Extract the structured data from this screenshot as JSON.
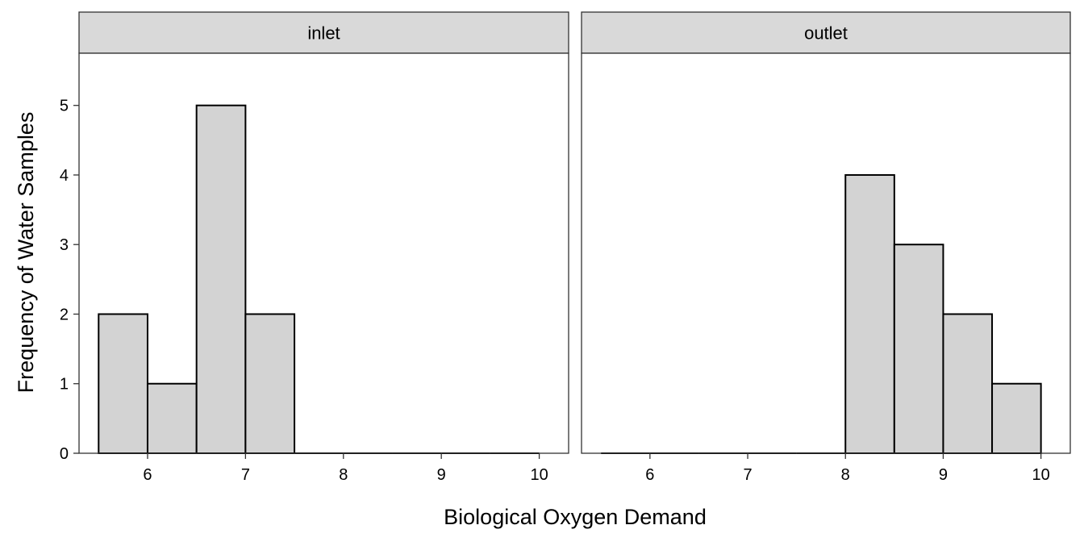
{
  "chart_data": {
    "type": "bar",
    "subtype": "histogram",
    "xlabel": "Biological Oxygen Demand",
    "ylabel": "Frequency of Water Samples",
    "xlim": [
      5.3,
      10.3
    ],
    "ylim": [
      0,
      5.75
    ],
    "x_ticks": [
      6,
      7,
      8,
      9,
      10
    ],
    "y_ticks": [
      0,
      1,
      2,
      3,
      4,
      5
    ],
    "bin_width": 0.5,
    "grid": false,
    "bar_fill": "#d3d3d3",
    "bar_stroke": "#000000",
    "strip_fill": "#d9d9d9",
    "panels": [
      {
        "label": "inlet",
        "bins": [
          {
            "x0": 5.5,
            "x1": 6.0,
            "count": 2
          },
          {
            "x0": 6.0,
            "x1": 6.5,
            "count": 1
          },
          {
            "x0": 6.5,
            "x1": 7.0,
            "count": 5
          },
          {
            "x0": 7.0,
            "x1": 7.5,
            "count": 2
          },
          {
            "x0": 7.5,
            "x1": 8.0,
            "count": 0
          },
          {
            "x0": 8.0,
            "x1": 8.5,
            "count": 0
          },
          {
            "x0": 8.5,
            "x1": 9.0,
            "count": 0
          },
          {
            "x0": 9.0,
            "x1": 9.5,
            "count": 0
          },
          {
            "x0": 9.5,
            "x1": 10.0,
            "count": 0
          }
        ]
      },
      {
        "label": "outlet",
        "bins": [
          {
            "x0": 5.5,
            "x1": 6.0,
            "count": 0
          },
          {
            "x0": 6.0,
            "x1": 6.5,
            "count": 0
          },
          {
            "x0": 6.5,
            "x1": 7.0,
            "count": 0
          },
          {
            "x0": 7.0,
            "x1": 7.5,
            "count": 0
          },
          {
            "x0": 7.5,
            "x1": 8.0,
            "count": 0
          },
          {
            "x0": 8.0,
            "x1": 8.5,
            "count": 4
          },
          {
            "x0": 8.5,
            "x1": 9.0,
            "count": 3
          },
          {
            "x0": 9.0,
            "x1": 9.5,
            "count": 2
          },
          {
            "x0": 9.5,
            "x1": 10.0,
            "count": 1
          }
        ]
      }
    ]
  }
}
